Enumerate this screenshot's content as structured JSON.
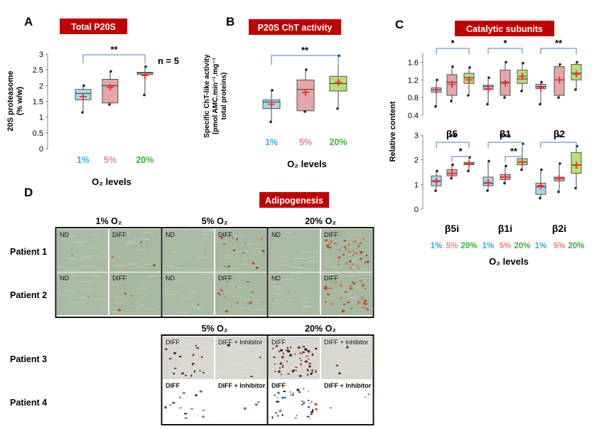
{
  "panels": {
    "A": {
      "letter": "A",
      "title": "Total P20S",
      "n_label": "n = 5"
    },
    "B": {
      "letter": "B",
      "title": "P20S ChT activity"
    },
    "C": {
      "letter": "C",
      "title": "Catalytic subunits"
    },
    "D": {
      "letter": "D",
      "title": "Adipogenesis"
    }
  },
  "colors": {
    "o2_1": "#2eaee0",
    "o2_5": "#e8868c",
    "o2_20": "#3cb043",
    "title_bg": "#c00000",
    "box_1": "#a6d8ea",
    "box_5": "#e3a7a7",
    "box_20": "#b7e07a",
    "mean": "#ff2a2a"
  },
  "o2_labels": [
    "1%",
    "5%",
    "20%"
  ],
  "xlabel": "O₂ levels",
  "chart_data": [
    {
      "type": "box",
      "panel": "A",
      "ylabel": "20S proteasome (% w/w)",
      "ylabel_lines": [
        "20S proteasome",
        "(% w/w)"
      ],
      "xlabel": "O₂ levels",
      "ylim": [
        0,
        3
      ],
      "yticks": [
        "0",
        "0.5",
        "1",
        "1.5",
        "2",
        "2.5",
        "3"
      ],
      "categories": [
        "1%",
        "5%",
        "20%"
      ],
      "boxes": [
        {
          "min": 1.15,
          "q1": 1.55,
          "median": 1.75,
          "q3": 1.88,
          "max": 2.0,
          "mean": 1.65,
          "points": [
            2.0,
            1.15
          ]
        },
        {
          "min": 1.4,
          "q1": 1.45,
          "median": 2.0,
          "q3": 2.2,
          "max": 2.45,
          "mean": 1.95,
          "points": [
            2.45,
            1.4
          ]
        },
        {
          "min": 1.7,
          "q1": 2.35,
          "median": 2.4,
          "q3": 2.42,
          "max": 2.6,
          "mean": 2.32,
          "points": [
            2.6,
            1.7
          ]
        }
      ],
      "significance": [
        {
          "from": 0,
          "to": 2,
          "label": "**"
        }
      ]
    },
    {
      "type": "box",
      "panel": "B",
      "ylabel": "Specific ChT-like activity (pmol AMC.min⁻¹.mg⁻¹ total proteins)",
      "ylabel_lines": [
        "Specific ChT-like activity",
        "(pmol AMC.min⁻¹.mg⁻¹",
        "total proteins)"
      ],
      "xlabel": "O₂ levels",
      "ylim": [
        0,
        6
      ],
      "categories": [
        "1%",
        "5%",
        "20%"
      ],
      "boxes": [
        {
          "min": 1.1,
          "q1": 2.0,
          "median": 2.45,
          "q3": 2.6,
          "max": 3.25,
          "mean": 2.3,
          "points": [
            3.25,
            1.1
          ]
        },
        {
          "min": 1.8,
          "q1": 1.85,
          "median": 3.3,
          "q3": 3.95,
          "max": 4.65,
          "mean": 3.1,
          "points": [
            4.65,
            1.8
          ]
        },
        {
          "min": 2.0,
          "q1": 3.2,
          "median": 3.7,
          "q3": 4.2,
          "max": 5.6,
          "mean": 3.8,
          "points": [
            5.6,
            2.0
          ]
        }
      ],
      "significance": [
        {
          "from": 0,
          "to": 2,
          "label": "**"
        }
      ]
    },
    {
      "type": "box",
      "panel": "C",
      "ylabel": "Relative content",
      "xlabel": "O₂ levels",
      "subplots": [
        {
          "ylim": [
            0.4,
            1.8
          ],
          "yticks": [
            "0.4",
            "0.8",
            "1.2",
            "1.6"
          ],
          "groups": [
            {
              "name": "β5",
              "boxes": [
                {
                  "min": 0.6,
                  "q1": 0.92,
                  "median": 0.98,
                  "q3": 1.02,
                  "max": 1.2,
                  "mean": 0.97
                },
                {
                  "min": 0.72,
                  "q1": 0.85,
                  "median": 1.15,
                  "q3": 1.32,
                  "max": 1.5,
                  "mean": 1.1
                },
                {
                  "min": 0.85,
                  "q1": 1.12,
                  "median": 1.25,
                  "q3": 1.35,
                  "max": 1.48,
                  "mean": 1.2
                }
              ],
              "significance": [
                {
                  "from": 0,
                  "to": 2,
                  "label": "*"
                }
              ]
            },
            {
              "name": "β1",
              "boxes": [
                {
                  "min": 0.65,
                  "q1": 0.98,
                  "median": 1.05,
                  "q3": 1.08,
                  "max": 1.25,
                  "mean": 1.0
                },
                {
                  "min": 0.8,
                  "q1": 0.85,
                  "median": 1.15,
                  "q3": 1.42,
                  "max": 1.6,
                  "mean": 1.12
                },
                {
                  "min": 0.95,
                  "q1": 1.12,
                  "median": 1.22,
                  "q3": 1.42,
                  "max": 1.58,
                  "mean": 1.28
                }
              ],
              "significance": [
                {
                  "from": 0,
                  "to": 2,
                  "label": "*"
                }
              ]
            },
            {
              "name": "β2",
              "boxes": [
                {
                  "min": 0.65,
                  "q1": 1.0,
                  "median": 1.05,
                  "q3": 1.1,
                  "max": 1.15,
                  "mean": 1.03
                },
                {
                  "min": 0.8,
                  "q1": 0.85,
                  "median": 1.2,
                  "q3": 1.5,
                  "max": 1.55,
                  "mean": 1.2
                },
                {
                  "min": 0.98,
                  "q1": 1.2,
                  "median": 1.35,
                  "q3": 1.55,
                  "max": 1.6,
                  "mean": 1.33
                }
              ],
              "significance": [
                {
                  "from": 0,
                  "to": 2,
                  "label": "**"
                }
              ]
            }
          ]
        },
        {
          "ylim": [
            0,
            3
          ],
          "yticks": [
            "0",
            "1",
            "2",
            "3"
          ],
          "groups": [
            {
              "name": "β5i",
              "boxes": [
                {
                  "min": 0.75,
                  "q1": 0.95,
                  "median": 1.15,
                  "q3": 1.35,
                  "max": 1.55,
                  "mean": 1.12
                },
                {
                  "min": 1.25,
                  "q1": 1.35,
                  "median": 1.45,
                  "q3": 1.6,
                  "max": 1.8,
                  "mean": 1.45
                },
                {
                  "min": 1.55,
                  "q1": 1.8,
                  "median": 1.85,
                  "q3": 1.9,
                  "max": 2.1,
                  "mean": 1.85
                }
              ],
              "significance": [
                {
                  "from": 0,
                  "to": 2,
                  "label": "**"
                },
                {
                  "from": 1,
                  "to": 2,
                  "label": "*"
                }
              ]
            },
            {
              "name": "β1i",
              "boxes": [
                {
                  "min": 0.75,
                  "q1": 0.95,
                  "median": 1.05,
                  "q3": 1.3,
                  "max": 1.95,
                  "mean": 1.08
                },
                {
                  "min": 1.05,
                  "q1": 1.2,
                  "median": 1.3,
                  "q3": 1.4,
                  "max": 1.75,
                  "mean": 1.3
                },
                {
                  "min": 1.6,
                  "q1": 1.8,
                  "median": 1.9,
                  "q3": 2.05,
                  "max": 2.65,
                  "mean": 1.92
                }
              ],
              "significance": [
                {
                  "from": 0,
                  "to": 2,
                  "label": "***"
                },
                {
                  "from": 1,
                  "to": 2,
                  "label": "**"
                }
              ]
            },
            {
              "name": "β2i",
              "boxes": [
                {
                  "min": 0.45,
                  "q1": 0.6,
                  "median": 0.9,
                  "q3": 1.05,
                  "max": 1.6,
                  "mean": 0.95
                },
                {
                  "min": 0.7,
                  "q1": 1.15,
                  "median": 1.25,
                  "q3": 1.3,
                  "max": 1.85,
                  "mean": 1.25
                },
                {
                  "min": 0.85,
                  "q1": 1.45,
                  "median": 1.8,
                  "q3": 2.3,
                  "max": 2.55,
                  "mean": 1.78
                }
              ],
              "significance": [
                {
                  "from": 0,
                  "to": 2,
                  "label": "*"
                }
              ]
            }
          ]
        }
      ]
    }
  ],
  "adipogenesis": {
    "columns": [
      "1% O₂",
      "5% O₂",
      "20% O₂"
    ],
    "rows": [
      "Patient 1",
      "Patient 2"
    ],
    "tile_labels": [
      "ND",
      "DIFF"
    ],
    "inhibitor_columns": [
      "5% O₂",
      "20% O₂"
    ],
    "inhibitor_rows": [
      "Patient 3",
      "Patient 4"
    ],
    "inhibitor_tile_labels": [
      "DIFF",
      "DIFF + Inhibitor"
    ]
  }
}
